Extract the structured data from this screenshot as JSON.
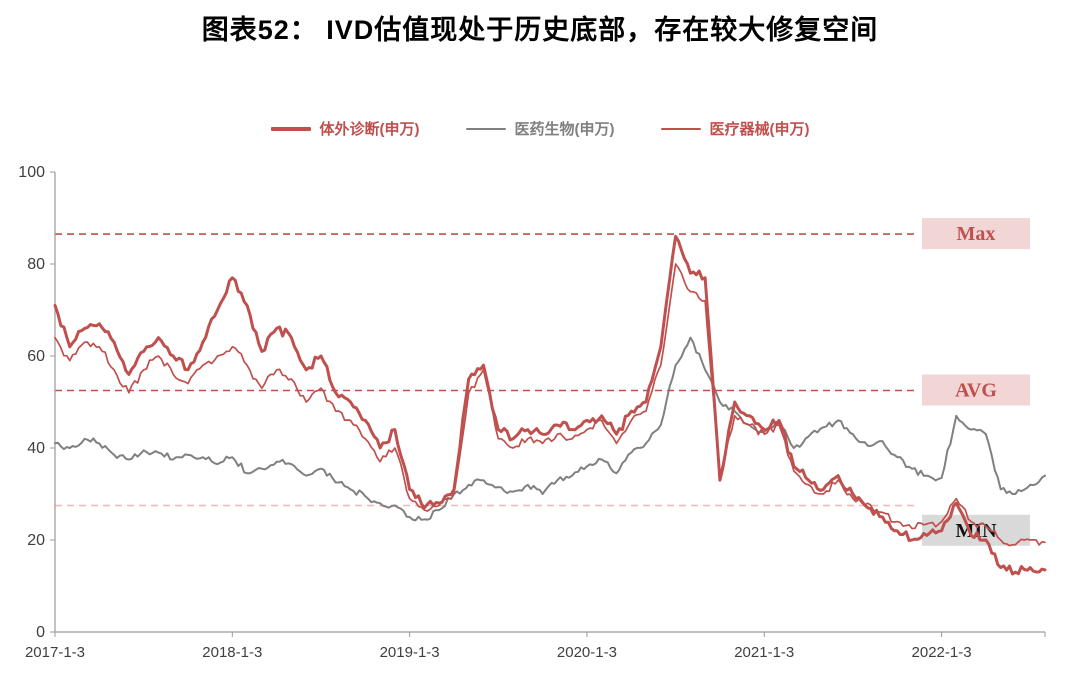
{
  "title": "图表52： IVD估值现处于历史底部，存在较大修复空间",
  "legend": [
    {
      "id": "ivd",
      "label": "体外诊断(申万)",
      "color": "#c0504d",
      "swatch_height": 4
    },
    {
      "id": "pharma-bio",
      "label": "医药生物(申万)",
      "color": "#808080",
      "swatch_height": 2
    },
    {
      "id": "medical-devices",
      "label": "医疗器械(申万)",
      "color": "#c0504d",
      "swatch_height": 2
    }
  ],
  "chart_data": {
    "type": "line",
    "title": "图表52： IVD估值现处于历史底部，存在较大修复空间",
    "x_start": "2017-01",
    "x_step": "month",
    "n_points": 68,
    "ylim": [
      0,
      100
    ],
    "yticks": [
      0,
      20,
      40,
      60,
      80,
      100
    ],
    "xticks": {
      "indices": [
        0,
        12,
        24,
        36,
        48,
        60
      ],
      "labels": [
        "2017-1-3",
        "2018-1-3",
        "2019-1-3",
        "2020-1-3",
        "2021-1-3",
        "2022-1-3"
      ]
    },
    "draw_order": [
      1,
      2,
      0
    ],
    "series": [
      {
        "id": "ivd",
        "name": "体外诊断(申万)",
        "color": "#c0504d",
        "width": 3,
        "jitter": 1.1,
        "values": [
          71,
          62,
          66,
          67,
          63,
          56,
          61,
          64,
          60,
          57,
          63,
          70,
          77,
          71,
          61,
          66,
          64,
          57,
          60,
          52,
          50,
          46,
          40,
          44,
          31,
          27,
          28,
          31,
          55,
          58,
          44,
          42,
          44,
          43,
          45,
          44,
          46,
          47,
          43,
          48,
          50,
          62,
          86,
          78,
          77,
          33,
          50,
          47,
          44,
          46,
          36,
          33,
          31,
          34,
          30,
          27,
          25,
          22,
          20,
          21,
          22,
          28,
          21,
          20,
          14,
          13,
          14,
          13.5
        ]
      },
      {
        "id": "pharma-bio",
        "name": "医药生物(申万)",
        "color": "#808080",
        "width": 2,
        "jitter": 0.8,
        "values": [
          41,
          40,
          42,
          41,
          38.5,
          37.5,
          39.5,
          39,
          37.5,
          38.5,
          38,
          36.5,
          38,
          34.5,
          35.5,
          37,
          36.5,
          34,
          35.5,
          32.5,
          31,
          29.5,
          28,
          27.5,
          25,
          24.5,
          26.5,
          30,
          32,
          33,
          31.5,
          30.5,
          32,
          30,
          33,
          34,
          36,
          37.5,
          34.5,
          39,
          41,
          45,
          58,
          64,
          57,
          50,
          48,
          45,
          43.5,
          46,
          40,
          42.5,
          44.5,
          46,
          43,
          40.5,
          41.5,
          38,
          35.5,
          34,
          33.5,
          47,
          44,
          43,
          31,
          30,
          32,
          34
        ]
      },
      {
        "id": "medical-devices",
        "name": "医疗器械(申万)",
        "color": "#c0504d",
        "width": 1.7,
        "jitter": 1.0,
        "values": [
          64,
          59,
          63,
          62,
          57,
          52,
          57,
          60,
          56,
          54,
          58,
          60,
          62,
          58,
          53,
          57,
          55,
          50,
          53,
          48,
          46,
          42,
          37,
          40,
          29,
          26.5,
          27.5,
          30,
          52,
          57,
          42,
          40,
          42,
          41,
          43,
          42,
          44,
          46,
          41,
          46,
          48,
          58,
          80,
          74,
          72,
          34,
          47,
          45,
          43,
          45,
          35,
          32,
          30,
          33,
          29,
          28,
          26,
          24,
          22.5,
          23.5,
          24,
          29,
          24,
          23,
          20,
          19,
          20,
          19.5
        ]
      }
    ],
    "reference_lines": [
      {
        "label": "Max",
        "value": 86.5,
        "label_at": 86.5,
        "line_color": "#c0504d",
        "box_fill": "#f2d5d5",
        "text_color": "#c0504d"
      },
      {
        "label": "AVG",
        "value": 52.5,
        "label_at": 52.5,
        "line_color": "#c0504d",
        "box_fill": "#f2d5d5",
        "text_color": "#c0504d"
      },
      {
        "label": "MIN",
        "value": 27.5,
        "label_at": 22,
        "line_color": "#f0b8b8",
        "box_fill": "#d9d9d9",
        "text_color": "#111111"
      }
    ]
  }
}
